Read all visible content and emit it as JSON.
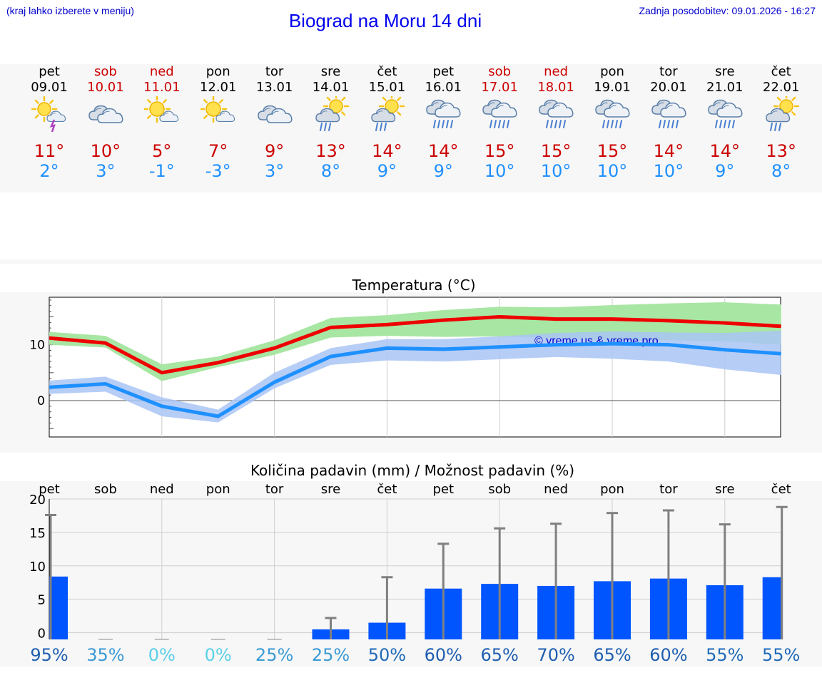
{
  "header": {
    "hint": "(kraj lahko izberete v meniju)",
    "title": "Biograd na Moru 14 dni",
    "updated": "Zadnja posodobitev: 09.01.2026 - 16:27"
  },
  "days": [
    {
      "name": "pet",
      "date": "09.01",
      "weekend": false,
      "icon": "sun-cloud-thunder-icon",
      "max": "11°",
      "min": "2°"
    },
    {
      "name": "sob",
      "date": "10.01",
      "weekend": true,
      "icon": "cloudy-icon",
      "max": "10°",
      "min": "3°"
    },
    {
      "name": "ned",
      "date": "11.01",
      "weekend": true,
      "icon": "sun-cloud-icon",
      "max": "5°",
      "min": "-1°"
    },
    {
      "name": "pon",
      "date": "12.01",
      "weekend": false,
      "icon": "sun-cloud-icon",
      "max": "7°",
      "min": "-3°"
    },
    {
      "name": "tor",
      "date": "13.01",
      "weekend": false,
      "icon": "cloudy-icon",
      "max": "9°",
      "min": "3°"
    },
    {
      "name": "sre",
      "date": "14.01",
      "weekend": false,
      "icon": "sun-rain-icon",
      "max": "13°",
      "min": "8°"
    },
    {
      "name": "čet",
      "date": "15.01",
      "weekend": false,
      "icon": "sun-rain-icon",
      "max": "14°",
      "min": "9°"
    },
    {
      "name": "pet",
      "date": "16.01",
      "weekend": false,
      "icon": "rain-cloud-icon",
      "max": "14°",
      "min": "9°"
    },
    {
      "name": "sob",
      "date": "17.01",
      "weekend": true,
      "icon": "rain-cloud-icon",
      "max": "15°",
      "min": "10°"
    },
    {
      "name": "ned",
      "date": "18.01",
      "weekend": true,
      "icon": "rain-cloud-icon",
      "max": "15°",
      "min": "10°"
    },
    {
      "name": "pon",
      "date": "19.01",
      "weekend": false,
      "icon": "rain-cloud-icon",
      "max": "15°",
      "min": "10°"
    },
    {
      "name": "tor",
      "date": "20.01",
      "weekend": false,
      "icon": "rain-cloud-icon",
      "max": "14°",
      "min": "10°"
    },
    {
      "name": "sre",
      "date": "21.01",
      "weekend": false,
      "icon": "rain-cloud-icon",
      "max": "14°",
      "min": "9°"
    },
    {
      "name": "čet",
      "date": "22.01",
      "weekend": false,
      "icon": "sun-rain-icon",
      "max": "13°",
      "min": "8°"
    }
  ],
  "colors": {
    "max_line": "#ee0000",
    "max_band": "#a8e6a3",
    "min_line": "#1e90ff",
    "min_band": "#a9c4f5",
    "bar": "#0055ff",
    "whisker": "#808080",
    "weekend": "#cc0000"
  },
  "chart_data": [
    {
      "type": "line",
      "title": "Temperatura (°C)",
      "watermark": "© vreme.us & vreme.pro",
      "ylim": [
        -6.5,
        18.5
      ],
      "yticks": [
        0,
        10
      ],
      "x": [
        0,
        1,
        2,
        3,
        4,
        5,
        6,
        7,
        8,
        9,
        10,
        11,
        12,
        13
      ],
      "series": [
        {
          "name": "max",
          "values": [
            11.2,
            10.3,
            5.0,
            6.8,
            9.4,
            13.1,
            13.6,
            14.4,
            15.0,
            14.6,
            14.6,
            14.3,
            13.9,
            13.3
          ],
          "band_low": [
            10.0,
            9.5,
            3.5,
            6.0,
            8.2,
            11.3,
            11.6,
            11.4,
            11.5,
            11.2,
            10.8,
            10.8,
            10.6,
            10.0
          ],
          "band_high": [
            12.3,
            11.6,
            6.5,
            7.9,
            10.8,
            14.8,
            15.3,
            16.2,
            16.8,
            16.7,
            17.1,
            17.4,
            17.6,
            17.2
          ]
        },
        {
          "name": "min",
          "values": [
            2.4,
            3.0,
            -1.0,
            -2.8,
            3.3,
            7.9,
            9.4,
            9.2,
            9.6,
            10.0,
            10.2,
            10.0,
            9.1,
            8.4
          ],
          "band_low": [
            1.2,
            1.6,
            -2.8,
            -3.9,
            2.2,
            6.4,
            7.2,
            7.0,
            7.4,
            7.8,
            7.5,
            7.0,
            5.6,
            4.6
          ],
          "band_high": [
            3.6,
            4.3,
            0.6,
            -1.6,
            5.0,
            9.4,
            11.0,
            11.0,
            11.5,
            12.1,
            12.4,
            12.2,
            12.1,
            12.5
          ]
        }
      ]
    },
    {
      "type": "bar",
      "title": "Količina padavin (mm) / Možnost padavin (%)",
      "ylim": [
        -1,
        20
      ],
      "yticks": [
        0,
        5,
        10,
        15,
        20
      ],
      "categories": [
        "pet",
        "sob",
        "ned",
        "pon",
        "tor",
        "sre",
        "čet",
        "pet",
        "sob",
        "ned",
        "pon",
        "tor",
        "sre",
        "čet"
      ],
      "values": [
        8.4,
        0,
        0,
        0,
        0,
        0.5,
        1.5,
        6.6,
        7.3,
        7.0,
        7.7,
        8.1,
        7.1,
        8.3
      ],
      "whisker_high": [
        17.6,
        0,
        0,
        0,
        0,
        2.2,
        8.3,
        13.3,
        15.6,
        16.3,
        17.9,
        18.3,
        16.2,
        18.8
      ],
      "probabilities": [
        "95%",
        "35%",
        "0%",
        "0%",
        "25%",
        "25%",
        "50%",
        "60%",
        "65%",
        "70%",
        "65%",
        "60%",
        "55%",
        "55%"
      ],
      "probability_colors": [
        "#1e5eb0",
        "#3a9ad6",
        "#5ad0e8",
        "#5ad0e8",
        "#3a9ad6",
        "#3a9ad6",
        "#1e6ab8",
        "#1e5eb0",
        "#1e5eb0",
        "#1e5eb0",
        "#1e5eb0",
        "#1e5eb0",
        "#1e6ab8",
        "#1e6ab8"
      ]
    }
  ]
}
